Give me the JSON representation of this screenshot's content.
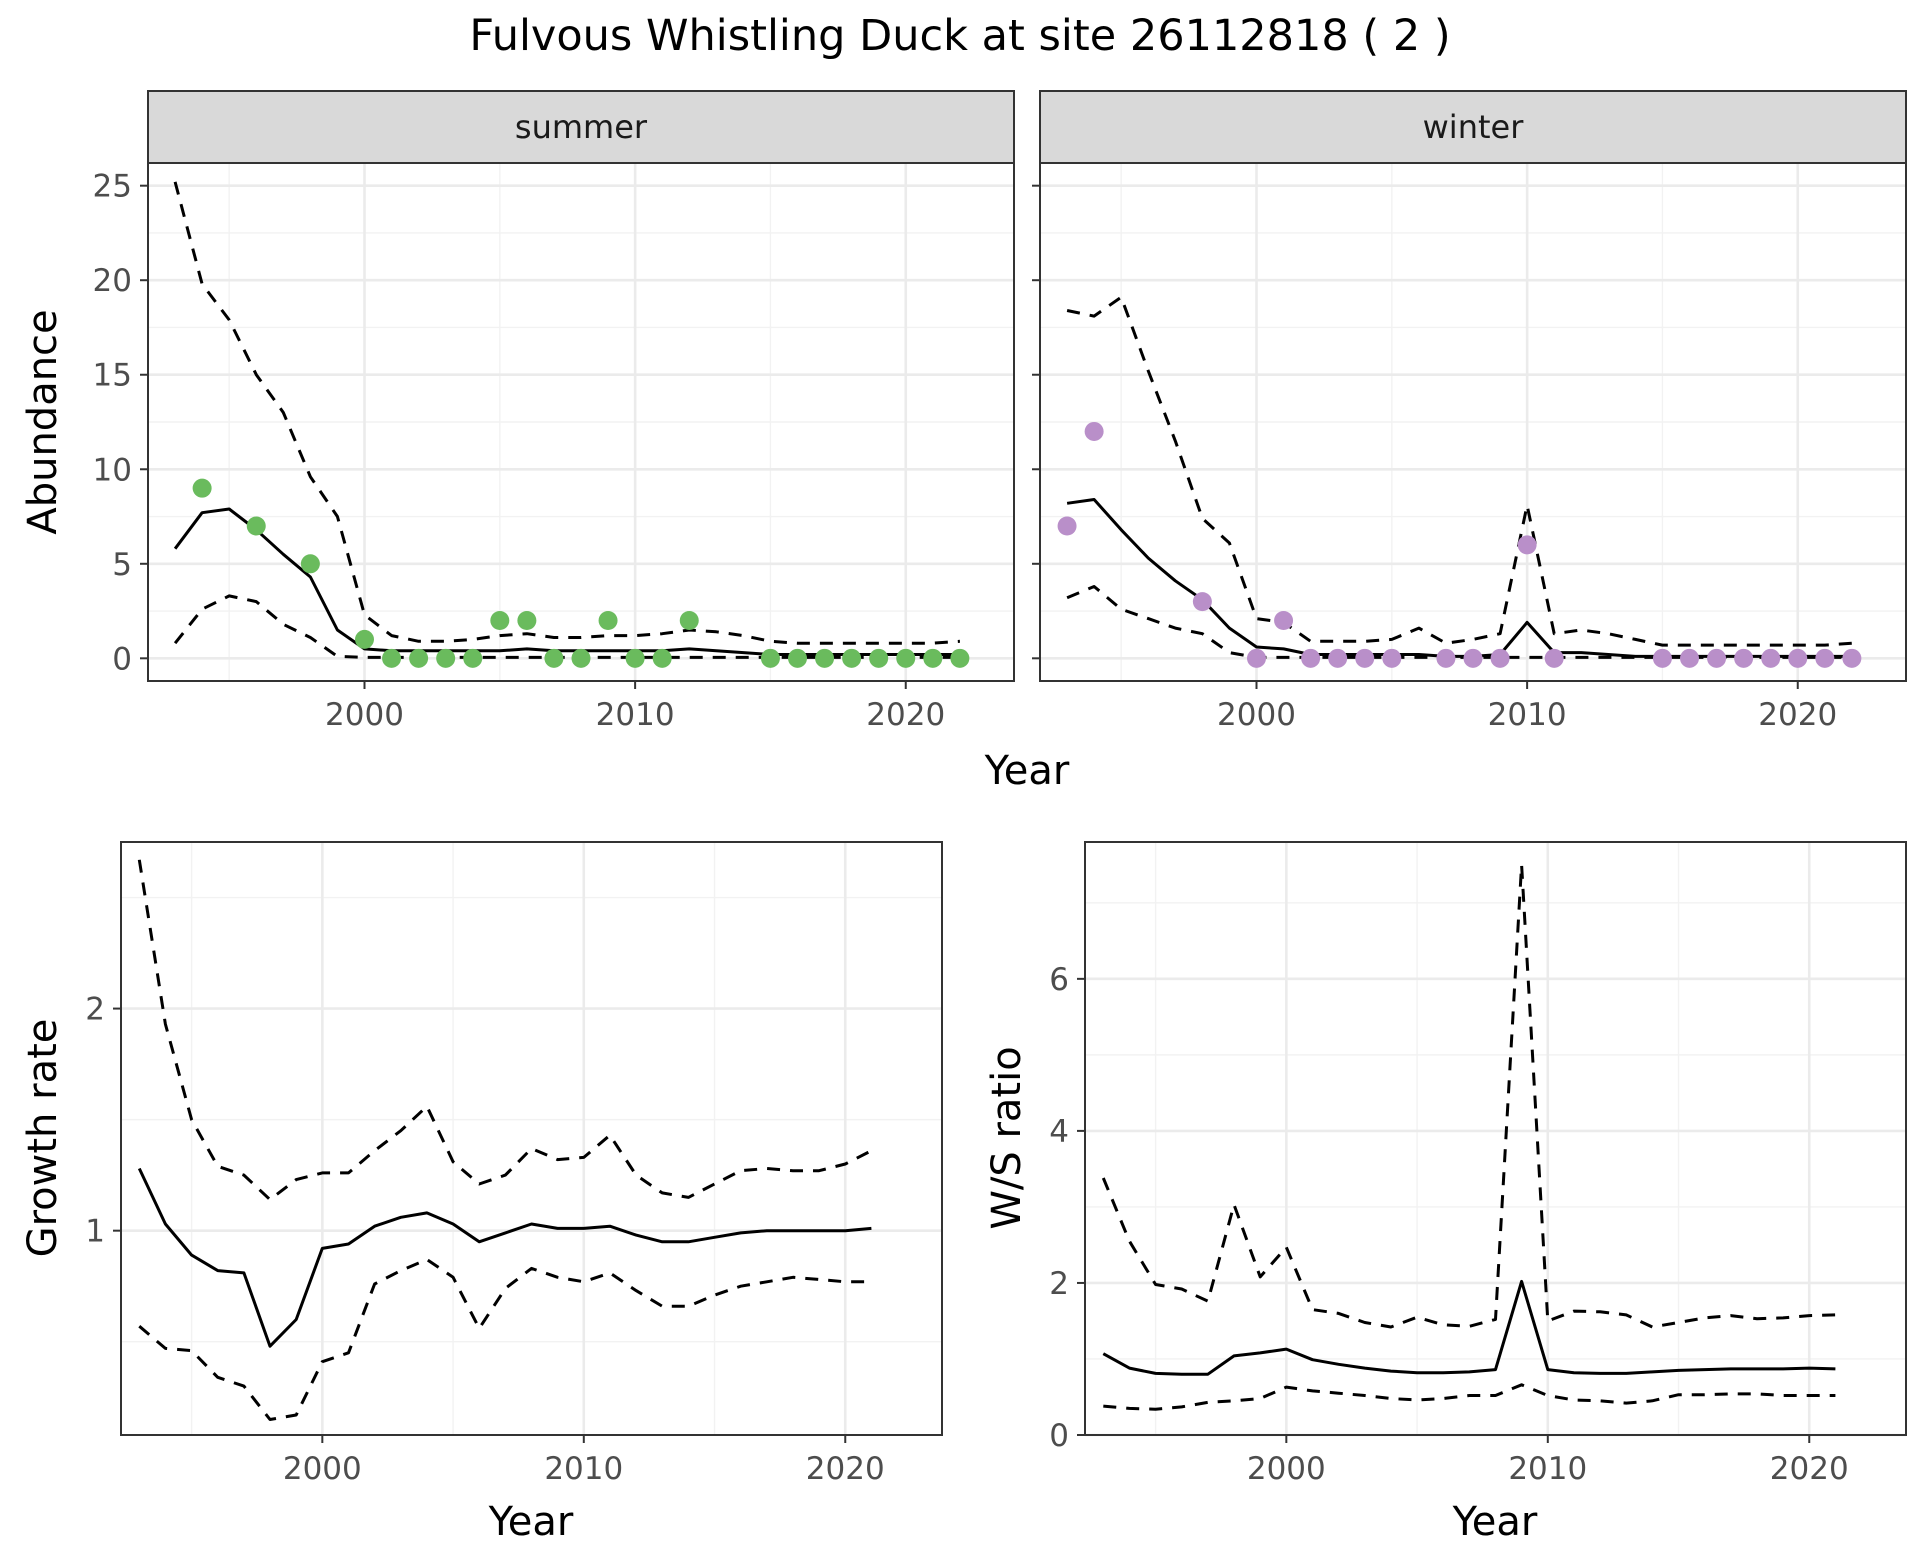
{
  "title": "Fulvous Whistling Duck at site 26112818 ( 2 )",
  "colors": {
    "summer_points": "#6abb5d",
    "winter_points": "#b98fc9",
    "lines": "#000000",
    "strip_background": "#d9d9d9"
  },
  "chart_data": [
    {
      "type": "line",
      "facet": "summer",
      "xlabel": "Year",
      "ylabel": "Abundance",
      "xlim": [
        1992,
        2024
      ],
      "ylim": [
        -1.2,
        26.2
      ],
      "x_ticks": [
        2000,
        2010,
        2020
      ],
      "y_ticks": [
        0,
        5,
        10,
        15,
        20,
        25
      ],
      "grid": true,
      "x": [
        1993,
        1994,
        1995,
        1996,
        1997,
        1998,
        1999,
        2000,
        2001,
        2002,
        2003,
        2004,
        2005,
        2006,
        2007,
        2008,
        2009,
        2010,
        2011,
        2012,
        2013,
        2014,
        2015,
        2016,
        2017,
        2018,
        2019,
        2020,
        2021,
        2022
      ],
      "series": [
        {
          "role": "estimate",
          "style": "solid",
          "values": [
            5.8,
            7.7,
            7.9,
            6.8,
            5.5,
            4.3,
            1.5,
            0.5,
            0.4,
            0.4,
            0.4,
            0.4,
            0.4,
            0.5,
            0.4,
            0.4,
            0.4,
            0.4,
            0.4,
            0.5,
            0.4,
            0.3,
            0.2,
            0.2,
            0.2,
            0.2,
            0.2,
            0.2,
            0.2,
            0.2
          ]
        },
        {
          "role": "upper",
          "style": "dashed",
          "values": [
            25.2,
            19.8,
            17.9,
            15.0,
            13.0,
            9.6,
            7.5,
            2.3,
            1.2,
            0.9,
            0.9,
            1.0,
            1.2,
            1.3,
            1.1,
            1.1,
            1.2,
            1.2,
            1.3,
            1.5,
            1.4,
            1.2,
            0.9,
            0.8,
            0.8,
            0.8,
            0.8,
            0.8,
            0.8,
            0.9
          ]
        },
        {
          "role": "lower",
          "style": "dashed",
          "values": [
            0.8,
            2.6,
            3.3,
            3.0,
            1.8,
            1.1,
            0.1,
            0.05,
            0.05,
            0.05,
            0.05,
            0.05,
            0.05,
            0.05,
            0.05,
            0.05,
            0.05,
            0.05,
            0.05,
            0.05,
            0.05,
            0.05,
            0.05,
            0.05,
            0.05,
            0.05,
            0.05,
            0.05,
            0.05,
            0.05
          ]
        }
      ],
      "points": {
        "x": [
          1994,
          1996,
          1998,
          2000,
          2001,
          2002,
          2003,
          2004,
          2005,
          2006,
          2007,
          2008,
          2009,
          2010,
          2011,
          2012,
          2015,
          2016,
          2017,
          2018,
          2019,
          2020,
          2021,
          2022
        ],
        "y": [
          9,
          7,
          5,
          1,
          0,
          0,
          0,
          0,
          2,
          2,
          0,
          0,
          2,
          0,
          0,
          2,
          0,
          0,
          0,
          0,
          0,
          0,
          0,
          0
        ]
      }
    },
    {
      "type": "line",
      "facet": "winter",
      "xlabel": "Year",
      "ylabel": "Abundance",
      "xlim": [
        1992,
        2024
      ],
      "ylim": [
        -1.2,
        26.2
      ],
      "x_ticks": [
        2000,
        2010,
        2020
      ],
      "y_ticks": [
        0,
        5,
        10,
        15,
        20,
        25
      ],
      "grid": true,
      "x": [
        1993,
        1994,
        1995,
        1996,
        1997,
        1998,
        1999,
        2000,
        2001,
        2002,
        2003,
        2004,
        2005,
        2006,
        2007,
        2008,
        2009,
        2010,
        2011,
        2012,
        2013,
        2014,
        2015,
        2016,
        2017,
        2018,
        2019,
        2020,
        2021,
        2022
      ],
      "series": [
        {
          "role": "estimate",
          "style": "solid",
          "values": [
            8.2,
            8.4,
            6.8,
            5.3,
            4.1,
            3.1,
            1.6,
            0.6,
            0.5,
            0.2,
            0.2,
            0.2,
            0.2,
            0.2,
            0.1,
            0.1,
            0.2,
            1.9,
            0.3,
            0.3,
            0.2,
            0.1,
            0.1,
            0.1,
            0.1,
            0.1,
            0.1,
            0.1,
            0.1,
            0.1
          ]
        },
        {
          "role": "upper",
          "style": "dashed",
          "values": [
            18.4,
            18.1,
            19.1,
            15.2,
            11.5,
            7.4,
            6.1,
            2.1,
            1.9,
            0.9,
            0.9,
            0.9,
            1.0,
            1.6,
            0.8,
            1.0,
            1.3,
            8.1,
            1.3,
            1.5,
            1.3,
            1.0,
            0.7,
            0.7,
            0.7,
            0.7,
            0.7,
            0.7,
            0.7,
            0.8
          ]
        },
        {
          "role": "lower",
          "style": "dashed",
          "values": [
            3.2,
            3.8,
            2.6,
            2.1,
            1.6,
            1.3,
            0.3,
            0.05,
            0.05,
            0.05,
            0.05,
            0.05,
            0.05,
            0.05,
            0.05,
            0.05,
            0.05,
            0.05,
            0.05,
            0.05,
            0.05,
            0.05,
            0.05,
            0.05,
            0.05,
            0.05,
            0.05,
            0.05,
            0.05,
            0.05
          ]
        }
      ],
      "points": {
        "x": [
          1993,
          1994,
          1998,
          2000,
          2001,
          2002,
          2003,
          2004,
          2005,
          2007,
          2008,
          2009,
          2010,
          2011,
          2015,
          2016,
          2017,
          2018,
          2019,
          2020,
          2021,
          2022
        ],
        "y": [
          7,
          12,
          3,
          0,
          2,
          0,
          0,
          0,
          0,
          0,
          0,
          0,
          6,
          0,
          0,
          0,
          0,
          0,
          0,
          0,
          0,
          0
        ]
      }
    },
    {
      "type": "line",
      "facet": "growth",
      "xlabel": "Year",
      "ylabel": "Growth rate",
      "xlim": [
        1992.3,
        2023.7
      ],
      "ylim": [
        0.08,
        2.75
      ],
      "x_ticks": [
        2000,
        2010,
        2020
      ],
      "y_ticks": [
        1,
        2
      ],
      "grid": true,
      "x": [
        1993,
        1994,
        1995,
        1996,
        1997,
        1998,
        1999,
        2000,
        2001,
        2002,
        2003,
        2004,
        2005,
        2006,
        2007,
        2008,
        2009,
        2010,
        2011,
        2012,
        2013,
        2014,
        2015,
        2016,
        2017,
        2018,
        2019,
        2020,
        2021
      ],
      "series": [
        {
          "role": "estimate",
          "style": "solid",
          "values": [
            1.28,
            1.03,
            0.89,
            0.82,
            0.81,
            0.48,
            0.6,
            0.92,
            0.94,
            1.02,
            1.06,
            1.08,
            1.03,
            0.95,
            0.99,
            1.03,
            1.01,
            1.01,
            1.02,
            0.98,
            0.95,
            0.95,
            0.97,
            0.99,
            1.0,
            1.0,
            1.0,
            1.0,
            1.01
          ]
        },
        {
          "role": "upper",
          "style": "dashed",
          "values": [
            2.67,
            1.93,
            1.5,
            1.29,
            1.25,
            1.14,
            1.23,
            1.26,
            1.26,
            1.36,
            1.45,
            1.56,
            1.31,
            1.21,
            1.25,
            1.37,
            1.32,
            1.33,
            1.43,
            1.25,
            1.17,
            1.15,
            1.21,
            1.27,
            1.28,
            1.27,
            1.27,
            1.3,
            1.36
          ]
        },
        {
          "role": "lower",
          "style": "dashed",
          "values": [
            0.57,
            0.47,
            0.46,
            0.34,
            0.3,
            0.15,
            0.17,
            0.41,
            0.45,
            0.76,
            0.82,
            0.87,
            0.79,
            0.56,
            0.74,
            0.83,
            0.79,
            0.77,
            0.81,
            0.73,
            0.66,
            0.66,
            0.71,
            0.75,
            0.77,
            0.79,
            0.78,
            0.77,
            0.77
          ]
        }
      ]
    },
    {
      "type": "line",
      "facet": "ratio",
      "xlabel": "Year",
      "ylabel": "W/S ratio",
      "xlim": [
        1992.3,
        2023.7
      ],
      "ylim": [
        0,
        7.8
      ],
      "x_ticks": [
        2000,
        2010,
        2020
      ],
      "y_ticks": [
        0,
        2,
        4,
        6
      ],
      "grid": true,
      "x": [
        1993,
        1994,
        1995,
        1996,
        1997,
        1998,
        1999,
        2000,
        2001,
        2002,
        2003,
        2004,
        2005,
        2006,
        2007,
        2008,
        2009,
        2010,
        2011,
        2012,
        2013,
        2014,
        2015,
        2016,
        2017,
        2018,
        2019,
        2020,
        2021
      ],
      "series": [
        {
          "role": "estimate",
          "style": "solid",
          "values": [
            1.07,
            0.88,
            0.81,
            0.8,
            0.8,
            1.04,
            1.08,
            1.13,
            0.99,
            0.93,
            0.88,
            0.84,
            0.82,
            0.82,
            0.83,
            0.86,
            2.02,
            0.86,
            0.82,
            0.81,
            0.81,
            0.83,
            0.85,
            0.86,
            0.87,
            0.87,
            0.87,
            0.88,
            0.87
          ]
        },
        {
          "role": "upper",
          "style": "dashed",
          "values": [
            3.38,
            2.55,
            1.98,
            1.92,
            1.76,
            3.03,
            2.08,
            2.47,
            1.65,
            1.6,
            1.48,
            1.42,
            1.55,
            1.45,
            1.43,
            1.52,
            7.5,
            1.5,
            1.63,
            1.62,
            1.58,
            1.42,
            1.48,
            1.54,
            1.57,
            1.53,
            1.54,
            1.57,
            1.58
          ]
        },
        {
          "role": "lower",
          "style": "dashed",
          "values": [
            0.38,
            0.35,
            0.34,
            0.37,
            0.43,
            0.45,
            0.48,
            0.63,
            0.58,
            0.55,
            0.52,
            0.48,
            0.46,
            0.48,
            0.52,
            0.52,
            0.66,
            0.52,
            0.46,
            0.45,
            0.42,
            0.45,
            0.53,
            0.53,
            0.54,
            0.54,
            0.52,
            0.52,
            0.52
          ]
        }
      ]
    }
  ],
  "facet_labels": [
    "summer",
    "winter"
  ],
  "shared_xlabel": "Year"
}
